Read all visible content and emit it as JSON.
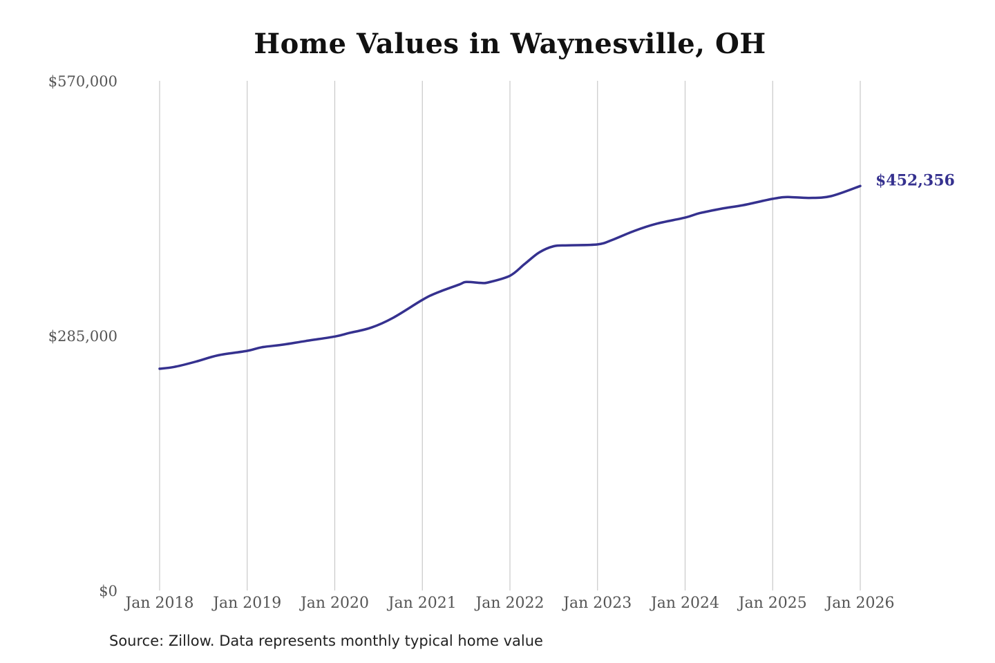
{
  "chart_data": {
    "type": "line",
    "title": "Home Values in Waynesville, OH",
    "xlabel": "",
    "ylabel": "",
    "ylim": [
      0,
      570000
    ],
    "y_ticks": [
      {
        "value": 0,
        "label": "$0"
      },
      {
        "value": 285000,
        "label": "$285,000"
      },
      {
        "value": 570000,
        "label": "$570,000"
      }
    ],
    "x_ticks": [
      {
        "value": 2018,
        "label": "Jan 2018"
      },
      {
        "value": 2019,
        "label": "Jan 2019"
      },
      {
        "value": 2020,
        "label": "Jan 2020"
      },
      {
        "value": 2021,
        "label": "Jan 2021"
      },
      {
        "value": 2022,
        "label": "Jan 2022"
      },
      {
        "value": 2023,
        "label": "Jan 2023"
      },
      {
        "value": 2024,
        "label": "Jan 2024"
      },
      {
        "value": 2025,
        "label": "Jan 2025"
      },
      {
        "value": 2026,
        "label": "Jan 2026"
      }
    ],
    "grid": "vertical",
    "line_color": "#35318f",
    "end_label": "$452,356",
    "series": [
      {
        "x": [
          "2018-01",
          "2018-03",
          "2018-06",
          "2018-09",
          "2019-01",
          "2019-03",
          "2019-06",
          "2019-09",
          "2020-01",
          "2020-03",
          "2020-06",
          "2020-09",
          "2021-01",
          "2021-03",
          "2021-06",
          "2021-07",
          "2021-09",
          "2021-10",
          "2022-01",
          "2022-03",
          "2022-05",
          "2022-07",
          "2022-09",
          "2023-01",
          "2023-03",
          "2023-06",
          "2023-09",
          "2024-01",
          "2024-03",
          "2024-06",
          "2024-09",
          "2025-01",
          "2025-03",
          "2025-06",
          "2025-09",
          "2026-01"
        ],
        "y": [
          248000,
          250000,
          256000,
          263000,
          268000,
          272000,
          275000,
          279000,
          284000,
          288000,
          294000,
          305000,
          325000,
          333000,
          342000,
          345000,
          344000,
          344500,
          352000,
          365000,
          378000,
          385000,
          386000,
          387000,
          392000,
          402000,
          410000,
          417000,
          422000,
          427000,
          431000,
          438000,
          440000,
          439000,
          441000,
          452356
        ]
      }
    ]
  },
  "footer": {
    "source": "Source: Zillow. Data represents monthly typical home value"
  }
}
